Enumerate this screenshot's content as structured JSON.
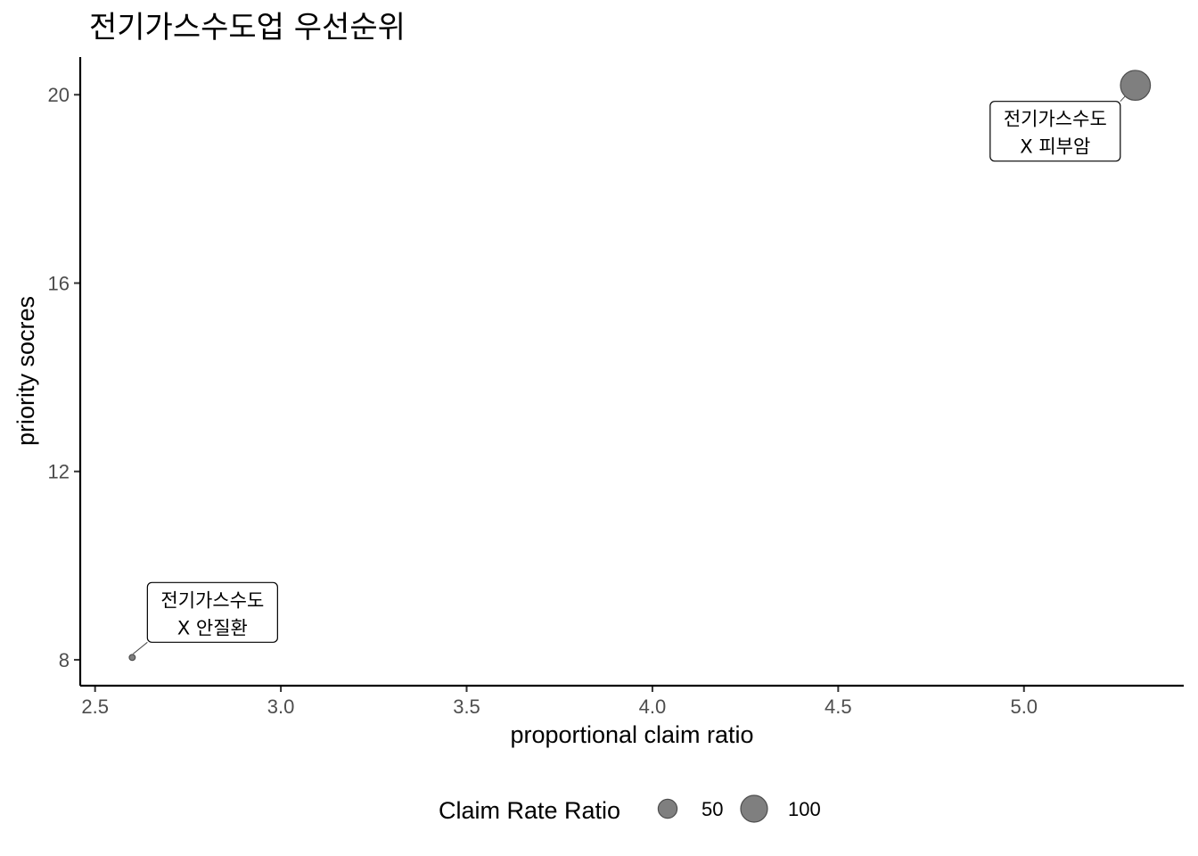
{
  "chart_data": {
    "type": "scatter",
    "title": "전기가스수도업  우선순위",
    "xlabel": "proportional claim ratio",
    "ylabel": "priority socres",
    "xlim": [
      2.46,
      5.43
    ],
    "ylim": [
      7.45,
      20.8
    ],
    "x_ticks": [
      "2.5",
      "3.0",
      "3.5",
      "4.0",
      "4.5",
      "5.0"
    ],
    "x_tick_values": [
      2.5,
      3.0,
      3.5,
      4.0,
      4.5,
      5.0
    ],
    "y_ticks": [
      "8",
      "12",
      "16",
      "20"
    ],
    "y_tick_values": [
      8,
      12,
      16,
      20
    ],
    "grid": false,
    "legend_position": "bottom",
    "point_color": "#7f7f7f",
    "points": [
      {
        "x": 2.6,
        "y": 8.05,
        "size": 5,
        "label_line1": "전기가스수도",
        "label_line2": "X 안질환"
      },
      {
        "x": 5.3,
        "y": 20.2,
        "size": 125,
        "label_line1": "전기가스수도",
        "label_line2": "X 피부암"
      }
    ],
    "legend": {
      "title": "Claim Rate Ratio",
      "entries": [
        {
          "label": "50",
          "size": 50
        },
        {
          "label": "100",
          "size": 100
        }
      ]
    }
  }
}
